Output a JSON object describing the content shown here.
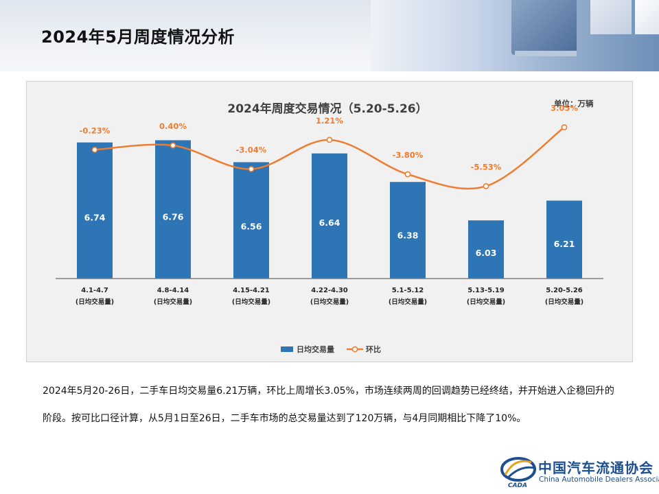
{
  "page": {
    "title": "2024年5月周度情况分析"
  },
  "chart_data": {
    "type": "bar+line",
    "title": "2024年周度交易情况（5.20-5.26）",
    "unit_label": "单位：万辆",
    "categories": [
      "4.1-4.7",
      "4.8-4.14",
      "4.15-4.21",
      "4.22-4.30",
      "5.1-5.12",
      "5.13-5.19",
      "5.20-5.26"
    ],
    "category_sublabel": "(日均交易量)",
    "bar_series": {
      "name": "日均交易量",
      "values": [
        6.74,
        6.76,
        6.56,
        6.64,
        6.38,
        6.03,
        6.21
      ],
      "color": "#2e75b6"
    },
    "line_series": {
      "name": "环比",
      "values": [
        -0.23,
        0.4,
        -3.04,
        1.21,
        -3.8,
        -5.53,
        3.05
      ],
      "labels": [
        "-0.23%",
        "0.40%",
        "-3.04%",
        "1.21%",
        "-3.80%",
        "-5.53%",
        "3.05%"
      ],
      "color": "#ed7d31"
    },
    "bar_ylim": [
      5.5,
      7.0
    ],
    "line_ylim": [
      -9,
      4
    ],
    "legend_position": "bottom"
  },
  "summary": {
    "text": "2024年5月20-26日，二手车日均交易量6.21万辆，环比上周增长3.05%，市场连续两周的回调趋势已经终结，并开始进入企稳回升的阶段。按可比口径计算，从5月1日至26日，二手车市场的总交易量达到了120万辆，与4月同期相比下降了10%。"
  },
  "logo": {
    "name_cn": "中国汽车流通协会",
    "name_en": "China Automobile Dealers Association",
    "abbr": "CADA"
  }
}
